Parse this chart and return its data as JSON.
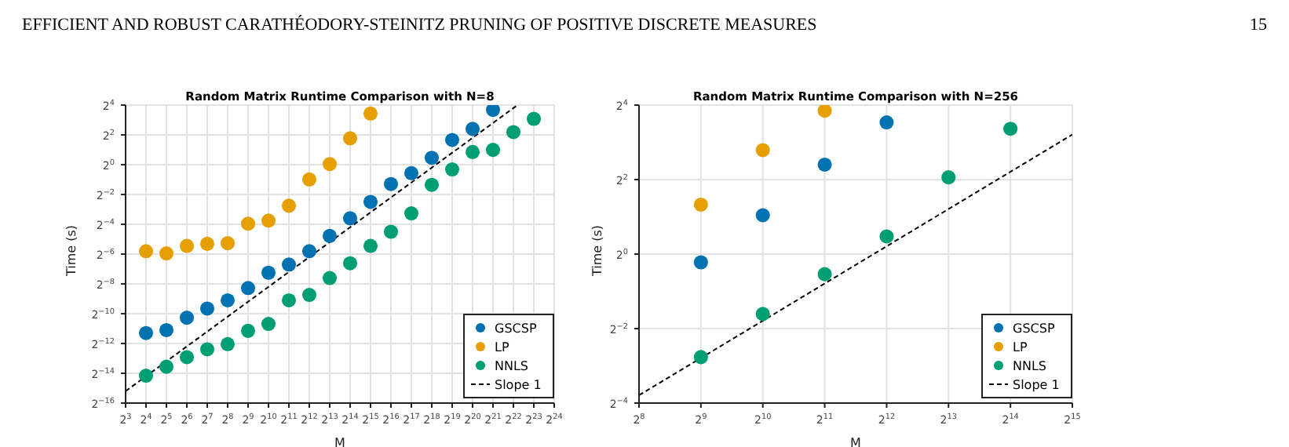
{
  "chart_data": [
    {
      "type": "scatter",
      "title": "Random Matrix Runtime Comparison with N=8",
      "xlabel": "M",
      "ylabel": "Time (s)",
      "annotations": [
        "EFFICIENT AND ROBUST CARATHÉODORY-STEINITZ PRUNING OF POSITIVE DISCRETE MEASURES",
        "15"
      ],
      "log": "xy",
      "grid": true,
      "legend": "bottom right",
      "marker": "circle",
      "xlim": [
        8,
        16777216
      ],
      "ylim": [
        1.52587890625e-05,
        16
      ],
      "xticks": [
        {
          "value": 8,
          "label": "2$^{3}$"
        },
        {
          "value": 16,
          "label": "2$^{4}$"
        },
        {
          "value": 32,
          "label": "2$^{5}$"
        },
        {
          "value": 64,
          "label": "2$^{6}$"
        },
        {
          "value": 128,
          "label": "2$^{7}$"
        },
        {
          "value": 256,
          "label": "2$^{8}$"
        },
        {
          "value": 512,
          "label": "2$^{9}$"
        },
        {
          "value": 1024,
          "label": "2$^{10}$"
        },
        {
          "value": 2048,
          "label": "2$^{11}$"
        },
        {
          "value": 4096,
          "label": "2$^{12}$"
        },
        {
          "value": 8192,
          "label": "2$^{13}$"
        },
        {
          "value": 16384,
          "label": "2$^{14}$"
        },
        {
          "value": 32768,
          "label": "2$^{15}$"
        },
        {
          "value": 65536,
          "label": "2$^{16}$"
        },
        {
          "value": 131072,
          "label": "2$^{17}$"
        },
        {
          "value": 262144,
          "label": "2$^{18}$"
        },
        {
          "value": 524288,
          "label": "2$^{19}$"
        },
        {
          "value": 1048576,
          "label": "2$^{20}$"
        },
        {
          "value": 2097152,
          "label": "2$^{21}$"
        },
        {
          "value": 4194304,
          "label": "2$^{22}$"
        },
        {
          "value": 8388608,
          "label": "2$^{23}$"
        },
        {
          "value": 16777216,
          "label": "2$^{24}$"
        }
      ],
      "yticks": [
        {
          "value": 1.52587890625e-05,
          "label": "2$^{−16}$"
        },
        {
          "value": 6.103515625e-05,
          "label": "2$^{−14}$"
        },
        {
          "value": 0.000244140625,
          "label": "2$^{−12}$"
        },
        {
          "value": 0.0009765625,
          "label": "2$^{−10}$"
        },
        {
          "value": 0.00390625,
          "label": "2$^{−8}$"
        },
        {
          "value": 0.015625,
          "label": "2$^{−6}$"
        },
        {
          "value": 0.0625,
          "label": "2$^{−4}$"
        },
        {
          "value": 0.25,
          "label": "2$^{−2}$"
        },
        {
          "value": 1,
          "label": "2$^{0}$"
        },
        {
          "value": 4,
          "label": "2$^{2}$"
        },
        {
          "value": 16,
          "label": "2$^{4}$"
        }
      ],
      "series": [
        {
          "name": "GSCSP",
          "color": "#0072b2",
          "x": [
            16,
            32,
            64,
            128,
            256,
            512,
            1024,
            2048,
            4096,
            8192,
            16384,
            32768,
            65536,
            131072,
            262144,
            524288,
            1048576,
            2097152
          ],
          "values": [
            0.000397,
            0.000455,
            0.00081,
            0.00124,
            0.00182,
            0.00322,
            0.00657,
            0.00962,
            0.0179,
            0.0364,
            0.0825,
            0.177,
            0.406,
            0.674,
            1.38,
            3.16,
            5.28,
            12.8
          ]
        },
        {
          "name": "LP",
          "color": "#e69f00",
          "x": [
            16,
            32,
            64,
            128,
            256,
            512,
            1024,
            2048,
            4096,
            8192,
            16384,
            32768
          ],
          "values": [
            0.0179,
            0.0162,
            0.0229,
            0.0252,
            0.0259,
            0.0643,
            0.0743,
            0.148,
            0.503,
            1.03,
            3.41,
            10.8
          ]
        },
        {
          "name": "NNLS",
          "color": "#009e73",
          "x": [
            16,
            32,
            64,
            128,
            256,
            512,
            1024,
            2048,
            4096,
            8192,
            16384,
            32768,
            65536,
            131072,
            262144,
            524288,
            1048576,
            2097152,
            4194304,
            8388608
          ],
          "values": [
            5.46e-05,
            8.28e-05,
            0.000129,
            0.000186,
            0.000237,
            0.00044,
            0.000606,
            0.00182,
            0.00234,
            0.00512,
            0.0102,
            0.0229,
            0.0442,
            0.104,
            0.392,
            0.801,
            1.8,
            1.99,
            4.56,
            8.45
          ]
        },
        {
          "name": "Slope 1",
          "type": "line",
          "color": "#000000",
          "line_style": "dashed",
          "marker": "none",
          "x": [
            8,
            4820000
          ],
          "values": [
            2.66e-05,
            16
          ]
        }
      ]
    },
    {
      "type": "scatter",
      "title": "Random Matrix Runtime Comparison with N=256",
      "xlabel": "M",
      "ylabel": "Time (s)",
      "log": "xy",
      "grid": true,
      "legend": "bottom right",
      "marker": "circle",
      "xlim": [
        256,
        32768
      ],
      "ylim": [
        0.0625,
        16
      ],
      "xticks": [
        {
          "value": 256,
          "label": "2$^{8}$"
        },
        {
          "value": 512,
          "label": "2$^{9}$"
        },
        {
          "value": 1024,
          "label": "2$^{10}$"
        },
        {
          "value": 2048,
          "label": "2$^{11}$"
        },
        {
          "value": 4096,
          "label": "2$^{12}$"
        },
        {
          "value": 8192,
          "label": "2$^{13}$"
        },
        {
          "value": 16384,
          "label": "2$^{14}$"
        },
        {
          "value": 32768,
          "label": "2$^{15}$"
        }
      ],
      "yticks": [
        {
          "value": 0.0625,
          "label": "2$^{−4}$"
        },
        {
          "value": 0.25,
          "label": "2$^{−2}$"
        },
        {
          "value": 1,
          "label": "2$^{0}$"
        },
        {
          "value": 4,
          "label": "2$^{2}$"
        },
        {
          "value": 16,
          "label": "2$^{4}$"
        }
      ],
      "series": [
        {
          "name": "GSCSP",
          "color": "#0072b2",
          "x": [
            512,
            1024,
            2048,
            4096
          ],
          "values": [
            0.858,
            2.06,
            5.28,
            11.6
          ]
        },
        {
          "name": "LP",
          "color": "#e69f00",
          "x": [
            512,
            1024,
            2048
          ],
          "values": [
            2.51,
            6.92,
            14.4
          ]
        },
        {
          "name": "NNLS",
          "color": "#009e73",
          "x": [
            512,
            1024,
            2048,
            4096,
            8192,
            16384
          ],
          "values": [
            0.147,
            0.328,
            0.688,
            1.39,
            4.17,
            10.3
          ]
        },
        {
          "name": "Slope 1",
          "type": "line",
          "color": "#000000",
          "line_style": "dashed",
          "marker": "none",
          "x": [
            256,
            32768
          ],
          "values": [
            0.0723,
            9.25
          ]
        }
      ]
    }
  ]
}
